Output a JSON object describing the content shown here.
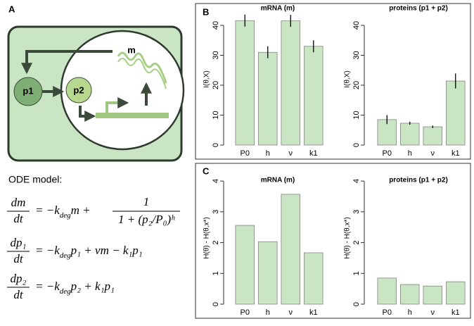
{
  "panel_labels": [
    "A",
    "B",
    "C"
  ],
  "diagram": {
    "nodes": [
      "p1",
      "p2",
      "m"
    ]
  },
  "ode": {
    "title": "ODE model:",
    "equations": [
      {
        "lhs_num": "dm",
        "lhs_den": "dt",
        "rhs": [
          "= −k",
          "deg",
          "m +"
        ],
        "frac_num": "1",
        "frac_den": "1 + (p₂/P₀)ʰ"
      },
      {
        "lhs_num": "dp₁",
        "lhs_den": "dt",
        "rhs": [
          "= −k",
          "deg",
          "p₁ + νm − k₁p₁"
        ]
      },
      {
        "lhs_num": "dp₂",
        "lhs_den": "dt",
        "rhs": [
          "= −k",
          "deg",
          "p₂ + k₁p₁"
        ]
      }
    ]
  },
  "chart_data": [
    {
      "type": "bar",
      "title": "mRNA (m)",
      "y_label": "I(θ,X)",
      "categories": [
        "P0",
        "h",
        "ν",
        "k1"
      ],
      "values": [
        41.6,
        31,
        41.5,
        33
      ],
      "errors": [
        2,
        2,
        2,
        2
      ],
      "color": "#c9e5c4",
      "ylim": [
        0,
        44
      ],
      "yticks": [
        0,
        10,
        20,
        30,
        40
      ]
    },
    {
      "type": "bar",
      "title": "proteins (p1 + p2)",
      "y_label": "I(θ,X)",
      "categories": [
        "P0",
        "h",
        "ν",
        "k1"
      ],
      "values": [
        8.5,
        7.3,
        6.1,
        21.4
      ],
      "errors": [
        1.5,
        0.5,
        0.4,
        2.5
      ],
      "color": "#c9e5c4",
      "ylim": [
        0,
        44
      ],
      "yticks": [
        0,
        10,
        20,
        30,
        40
      ]
    },
    {
      "type": "bar",
      "title": "mRNA (m)",
      "y_label": "H(θ) - H(θ,x*)",
      "categories": [
        "P0",
        "h",
        "ν",
        "k1"
      ],
      "values": [
        2.56,
        2.03,
        3.57,
        1.67
      ],
      "color": "#c9e5c4",
      "ylim": [
        0,
        4.3
      ],
      "yticks": [
        0,
        1,
        2,
        3,
        4
      ]
    },
    {
      "type": "bar",
      "title": "proteins (p1 + p2)",
      "y_label": "H(θ) - H(θ,x*)",
      "categories": [
        "P0",
        "h",
        "ν",
        "k1"
      ],
      "values": [
        0.85,
        0.64,
        0.59,
        0.73
      ],
      "color": "#c9e5c4",
      "ylim": [
        0,
        4.3
      ],
      "yticks": [
        0,
        1,
        2,
        3,
        4
      ]
    }
  ]
}
